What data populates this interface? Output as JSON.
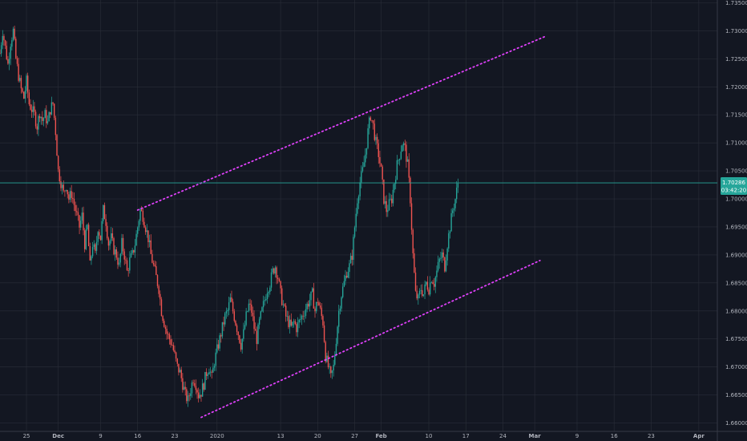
{
  "chart_data": {
    "type": "candlestick",
    "xlabel": "",
    "ylabel": "",
    "ylim": [
      1.6585,
      1.7355
    ],
    "y_ticks": [
      "1.73500",
      "1.73000",
      "1.72500",
      "1.72000",
      "1.71500",
      "1.71000",
      "1.70500",
      "1.70000",
      "1.69500",
      "1.69000",
      "1.68500",
      "1.68000",
      "1.67500",
      "1.67000",
      "1.66500",
      "1.66000"
    ],
    "x_ticks": [
      {
        "label": "25",
        "day": 25
      },
      {
        "label": "Dec",
        "day": 31
      },
      {
        "label": "9",
        "day": 39
      },
      {
        "label": "16",
        "day": 46
      },
      {
        "label": "23",
        "day": 53
      },
      {
        "label": "2020",
        "day": 61
      },
      {
        "label": "13",
        "day": 73
      },
      {
        "label": "20",
        "day": 80
      },
      {
        "label": "27",
        "day": 87
      },
      {
        "label": "Feb",
        "day": 92
      },
      {
        "label": "10",
        "day": 101
      },
      {
        "label": "17",
        "day": 108
      },
      {
        "label": "24",
        "day": 115
      },
      {
        "label": "Mar",
        "day": 121
      },
      {
        "label": "9",
        "day": 129
      },
      {
        "label": "16",
        "day": 136
      },
      {
        "label": "23",
        "day": 143
      },
      {
        "label": "Apr",
        "day": 152
      }
    ],
    "last_price": "1.70286",
    "countdown": "03:42:20",
    "colors": {
      "background": "#131722",
      "grid": "#2a2e39",
      "up": "#26a69a",
      "down": "#ef5350",
      "trendline": "#e040fb",
      "price_line": "#26a69a",
      "badge": "#26a69a",
      "axis_text": "#b2b5be"
    },
    "close_path": [
      [
        20.0,
        1.726
      ],
      [
        20.5,
        1.73
      ],
      [
        21.0,
        1.727
      ],
      [
        21.5,
        1.724
      ],
      [
        22.0,
        1.728
      ],
      [
        22.5,
        1.73
      ],
      [
        23.0,
        1.725
      ],
      [
        23.5,
        1.722
      ],
      [
        24.0,
        1.7195
      ],
      [
        24.5,
        1.718
      ],
      [
        25.0,
        1.721
      ],
      [
        25.5,
        1.717
      ],
      [
        26.0,
        1.716
      ],
      [
        26.5,
        1.715
      ],
      [
        27.0,
        1.713
      ],
      [
        27.5,
        1.7155
      ],
      [
        28.0,
        1.714
      ],
      [
        28.5,
        1.715
      ],
      [
        29.0,
        1.7135
      ],
      [
        29.5,
        1.716
      ],
      [
        30.0,
        1.717
      ],
      [
        30.5,
        1.712
      ],
      [
        31.0,
        1.705
      ],
      [
        31.5,
        1.703
      ],
      [
        32.0,
        1.701
      ],
      [
        32.5,
        1.7025
      ],
      [
        33.0,
        1.7
      ],
      [
        33.5,
        1.701
      ],
      [
        34.0,
        1.699
      ],
      [
        34.5,
        1.697
      ],
      [
        35.0,
        1.695
      ],
      [
        35.5,
        1.697
      ],
      [
        36.0,
        1.692
      ],
      [
        36.5,
        1.695
      ],
      [
        37.0,
        1.688
      ],
      [
        37.5,
        1.692
      ],
      [
        38.0,
        1.69
      ],
      [
        38.5,
        1.695
      ],
      [
        39.0,
        1.693
      ],
      [
        39.5,
        1.698
      ],
      [
        40.0,
        1.696
      ],
      [
        40.5,
        1.692
      ],
      [
        41.0,
        1.693
      ],
      [
        41.5,
        1.691
      ],
      [
        42.0,
        1.69
      ],
      [
        42.5,
        1.688
      ],
      [
        43.0,
        1.692
      ],
      [
        43.5,
        1.69
      ],
      [
        44.0,
        1.687
      ],
      [
        44.5,
        1.689
      ],
      [
        45.0,
        1.69
      ],
      [
        45.5,
        1.692
      ],
      [
        46.0,
        1.695
      ],
      [
        46.5,
        1.698
      ],
      [
        47.0,
        1.697
      ],
      [
        47.5,
        1.695
      ],
      [
        48.0,
        1.693
      ],
      [
        48.5,
        1.69
      ],
      [
        49.0,
        1.688
      ],
      [
        49.5,
        1.686
      ],
      [
        50.0,
        1.684
      ],
      [
        50.5,
        1.68
      ],
      [
        51.0,
        1.678
      ],
      [
        51.5,
        1.676
      ],
      [
        52.0,
        1.675
      ],
      [
        52.5,
        1.674
      ],
      [
        53.0,
        1.672
      ],
      [
        53.5,
        1.67
      ],
      [
        54.0,
        1.669
      ],
      [
        54.5,
        1.667
      ],
      [
        55.0,
        1.665
      ],
      [
        55.5,
        1.664
      ],
      [
        56.0,
        1.666
      ],
      [
        56.5,
        1.668
      ],
      [
        57.0,
        1.667
      ],
      [
        57.5,
        1.665
      ],
      [
        58.0,
        1.6655
      ],
      [
        58.5,
        1.667
      ],
      [
        59.0,
        1.669
      ],
      [
        59.5,
        1.67
      ],
      [
        60.0,
        1.668
      ],
      [
        60.5,
        1.671
      ],
      [
        61.0,
        1.673
      ],
      [
        61.5,
        1.675
      ],
      [
        62.0,
        1.677
      ],
      [
        62.5,
        1.679
      ],
      [
        63.0,
        1.68
      ],
      [
        63.5,
        1.682
      ],
      [
        64.0,
        1.68
      ],
      [
        64.5,
        1.678
      ],
      [
        65.0,
        1.676
      ],
      [
        65.5,
        1.674
      ],
      [
        66.0,
        1.676
      ],
      [
        66.5,
        1.679
      ],
      [
        67.0,
        1.681
      ],
      [
        67.5,
        1.68
      ],
      [
        68.0,
        1.677
      ],
      [
        68.5,
        1.675
      ],
      [
        69.0,
        1.678
      ],
      [
        69.5,
        1.68
      ],
      [
        70.0,
        1.682
      ],
      [
        70.5,
        1.684
      ],
      [
        71.0,
        1.685
      ],
      [
        71.5,
        1.687
      ],
      [
        72.0,
        1.688
      ],
      [
        72.5,
        1.686
      ],
      [
        73.0,
        1.683
      ],
      [
        73.5,
        1.681
      ],
      [
        74.0,
        1.679
      ],
      [
        74.5,
        1.678
      ],
      [
        75.0,
        1.677
      ],
      [
        75.5,
        1.678
      ],
      [
        76.0,
        1.677
      ],
      [
        76.5,
        1.678
      ],
      [
        77.0,
        1.679
      ],
      [
        77.5,
        1.68
      ],
      [
        78.0,
        1.681
      ],
      [
        78.5,
        1.682
      ],
      [
        79.0,
        1.683
      ],
      [
        79.5,
        1.68
      ],
      [
        80.0,
        1.682
      ],
      [
        80.5,
        1.68
      ],
      [
        81.0,
        1.678
      ],
      [
        81.5,
        1.672
      ],
      [
        82.0,
        1.67
      ],
      [
        82.5,
        1.668
      ],
      [
        83.0,
        1.67
      ],
      [
        83.5,
        1.675
      ],
      [
        84.0,
        1.68
      ],
      [
        84.5,
        1.683
      ],
      [
        85.0,
        1.685
      ],
      [
        85.5,
        1.687
      ],
      [
        86.0,
        1.688
      ],
      [
        86.5,
        1.69
      ],
      [
        87.0,
        1.695
      ],
      [
        87.5,
        1.7
      ],
      [
        88.0,
        1.703
      ],
      [
        88.5,
        1.705
      ],
      [
        89.0,
        1.708
      ],
      [
        89.5,
        1.712
      ],
      [
        90.0,
        1.715
      ],
      [
        90.5,
        1.713
      ],
      [
        91.0,
        1.71
      ],
      [
        91.5,
        1.708
      ],
      [
        92.0,
        1.705
      ],
      [
        92.5,
        1.7
      ],
      [
        93.0,
        1.698
      ],
      [
        93.5,
        1.699
      ],
      [
        94.0,
        1.7
      ],
      [
        94.5,
        1.703
      ],
      [
        95.0,
        1.706
      ],
      [
        95.5,
        1.708
      ],
      [
        96.0,
        1.71
      ],
      [
        96.5,
        1.709
      ],
      [
        97.0,
        1.706
      ],
      [
        97.5,
        1.7
      ],
      [
        98.0,
        1.69
      ],
      [
        98.5,
        1.683
      ],
      [
        99.0,
        1.682
      ],
      [
        99.5,
        1.684
      ],
      [
        100.0,
        1.683
      ],
      [
        100.5,
        1.685
      ],
      [
        101.0,
        1.684
      ],
      [
        101.5,
        1.686
      ],
      [
        102.0,
        1.685
      ],
      [
        102.5,
        1.687
      ],
      [
        103.0,
        1.689
      ],
      [
        103.5,
        1.69
      ],
      [
        104.0,
        1.688
      ],
      [
        104.5,
        1.692
      ],
      [
        105.0,
        1.695
      ],
      [
        105.5,
        1.698
      ],
      [
        106.0,
        1.7
      ],
      [
        106.5,
        1.7028
      ]
    ]
  },
  "trendlines": [
    {
      "name": "upper-channel-line",
      "from": [
        46,
        1.698
      ],
      "to": [
        123,
        1.729
      ]
    },
    {
      "name": "lower-channel-line",
      "from": [
        58,
        1.661
      ],
      "to": [
        122,
        1.689
      ]
    }
  ]
}
